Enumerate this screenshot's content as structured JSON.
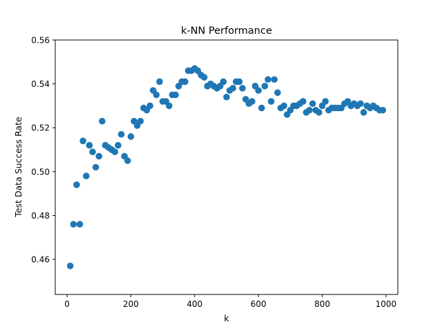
{
  "chart_data": {
    "type": "scatter",
    "title": "k-NN Performance",
    "xlabel": "k",
    "ylabel": "Test Data Success Rate",
    "xlim": [
      -37,
      1037
    ],
    "ylim": [
      0.444,
      0.56
    ],
    "xticks": [
      0,
      200,
      400,
      600,
      800,
      1000
    ],
    "xtick_labels": [
      "0",
      "200",
      "400",
      "600",
      "800",
      "1000"
    ],
    "yticks": [
      0.46,
      0.48,
      0.5,
      0.52,
      0.54,
      0.56
    ],
    "ytick_labels": [
      "0.46",
      "0.48",
      "0.50",
      "0.52",
      "0.54",
      "0.56"
    ],
    "grid": false,
    "marker_color": "#1f77b4",
    "points": [
      {
        "x": 10,
        "y": 0.457
      },
      {
        "x": 20,
        "y": 0.476
      },
      {
        "x": 30,
        "y": 0.494
      },
      {
        "x": 40,
        "y": 0.476
      },
      {
        "x": 50,
        "y": 0.514
      },
      {
        "x": 60,
        "y": 0.498
      },
      {
        "x": 70,
        "y": 0.512
      },
      {
        "x": 80,
        "y": 0.509
      },
      {
        "x": 90,
        "y": 0.502
      },
      {
        "x": 100,
        "y": 0.507
      },
      {
        "x": 110,
        "y": 0.523
      },
      {
        "x": 120,
        "y": 0.512
      },
      {
        "x": 130,
        "y": 0.511
      },
      {
        "x": 140,
        "y": 0.51
      },
      {
        "x": 150,
        "y": 0.509
      },
      {
        "x": 160,
        "y": 0.512
      },
      {
        "x": 170,
        "y": 0.517
      },
      {
        "x": 180,
        "y": 0.507
      },
      {
        "x": 190,
        "y": 0.505
      },
      {
        "x": 200,
        "y": 0.516
      },
      {
        "x": 210,
        "y": 0.523
      },
      {
        "x": 220,
        "y": 0.521
      },
      {
        "x": 230,
        "y": 0.523
      },
      {
        "x": 240,
        "y": 0.529
      },
      {
        "x": 250,
        "y": 0.528
      },
      {
        "x": 260,
        "y": 0.53
      },
      {
        "x": 270,
        "y": 0.537
      },
      {
        "x": 280,
        "y": 0.535
      },
      {
        "x": 290,
        "y": 0.541
      },
      {
        "x": 300,
        "y": 0.532
      },
      {
        "x": 310,
        "y": 0.532
      },
      {
        "x": 320,
        "y": 0.53
      },
      {
        "x": 330,
        "y": 0.535
      },
      {
        "x": 340,
        "y": 0.535
      },
      {
        "x": 350,
        "y": 0.539
      },
      {
        "x": 360,
        "y": 0.541
      },
      {
        "x": 370,
        "y": 0.541
      },
      {
        "x": 380,
        "y": 0.546
      },
      {
        "x": 390,
        "y": 0.546
      },
      {
        "x": 400,
        "y": 0.547
      },
      {
        "x": 410,
        "y": 0.546
      },
      {
        "x": 420,
        "y": 0.544
      },
      {
        "x": 430,
        "y": 0.543
      },
      {
        "x": 440,
        "y": 0.539
      },
      {
        "x": 450,
        "y": 0.54
      },
      {
        "x": 460,
        "y": 0.539
      },
      {
        "x": 470,
        "y": 0.538
      },
      {
        "x": 480,
        "y": 0.539
      },
      {
        "x": 490,
        "y": 0.541
      },
      {
        "x": 500,
        "y": 0.534
      },
      {
        "x": 510,
        "y": 0.537
      },
      {
        "x": 520,
        "y": 0.538
      },
      {
        "x": 530,
        "y": 0.541
      },
      {
        "x": 540,
        "y": 0.541
      },
      {
        "x": 550,
        "y": 0.538
      },
      {
        "x": 560,
        "y": 0.533
      },
      {
        "x": 570,
        "y": 0.531
      },
      {
        "x": 580,
        "y": 0.532
      },
      {
        "x": 590,
        "y": 0.539
      },
      {
        "x": 600,
        "y": 0.537
      },
      {
        "x": 610,
        "y": 0.529
      },
      {
        "x": 620,
        "y": 0.539
      },
      {
        "x": 630,
        "y": 0.542
      },
      {
        "x": 640,
        "y": 0.532
      },
      {
        "x": 650,
        "y": 0.542
      },
      {
        "x": 660,
        "y": 0.536
      },
      {
        "x": 670,
        "y": 0.529
      },
      {
        "x": 680,
        "y": 0.53
      },
      {
        "x": 690,
        "y": 0.526
      },
      {
        "x": 700,
        "y": 0.528
      },
      {
        "x": 710,
        "y": 0.53
      },
      {
        "x": 720,
        "y": 0.53
      },
      {
        "x": 730,
        "y": 0.531
      },
      {
        "x": 740,
        "y": 0.532
      },
      {
        "x": 750,
        "y": 0.527
      },
      {
        "x": 760,
        "y": 0.528
      },
      {
        "x": 770,
        "y": 0.531
      },
      {
        "x": 780,
        "y": 0.528
      },
      {
        "x": 790,
        "y": 0.527
      },
      {
        "x": 800,
        "y": 0.53
      },
      {
        "x": 810,
        "y": 0.532
      },
      {
        "x": 820,
        "y": 0.528
      },
      {
        "x": 830,
        "y": 0.529
      },
      {
        "x": 840,
        "y": 0.529
      },
      {
        "x": 850,
        "y": 0.529
      },
      {
        "x": 860,
        "y": 0.529
      },
      {
        "x": 870,
        "y": 0.531
      },
      {
        "x": 880,
        "y": 0.532
      },
      {
        "x": 890,
        "y": 0.53
      },
      {
        "x": 900,
        "y": 0.531
      },
      {
        "x": 910,
        "y": 0.53
      },
      {
        "x": 920,
        "y": 0.531
      },
      {
        "x": 930,
        "y": 0.527
      },
      {
        "x": 940,
        "y": 0.53
      },
      {
        "x": 950,
        "y": 0.529
      },
      {
        "x": 960,
        "y": 0.53
      },
      {
        "x": 970,
        "y": 0.529
      },
      {
        "x": 980,
        "y": 0.528
      },
      {
        "x": 990,
        "y": 0.528
      }
    ]
  }
}
